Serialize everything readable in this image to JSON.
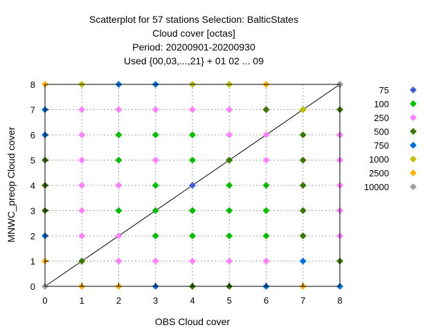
{
  "chart_data": {
    "type": "scatter",
    "title_lines": [
      "Scatterplot for   57 stations Selection: BalticStates",
      "Cloud cover [octas]",
      "Period: 20200901-20200930",
      "Used {00,03,...,21} + 01 02 ... 09"
    ],
    "xlabel": "OBS Cloud cover",
    "ylabel": "MNWC_preop Cloud cover",
    "xlim": [
      0,
      8
    ],
    "ylim": [
      0,
      8
    ],
    "xticks": [
      "0",
      "1",
      "2",
      "3",
      "4",
      "5",
      "6",
      "7",
      "8"
    ],
    "yticks": [
      "0",
      "1",
      "2",
      "3",
      "4",
      "5",
      "6",
      "7",
      "8"
    ],
    "grid": true,
    "diagonal": true,
    "legend_position": "right",
    "series": [
      {
        "name": "75",
        "color": "#4060d8",
        "points": [
          [
            3,
            5
          ],
          [
            4,
            4
          ],
          [
            4,
            3
          ],
          [
            8,
            8
          ]
        ]
      },
      {
        "name": "100",
        "color": "#00c000",
        "points": [
          [
            2,
            6
          ],
          [
            2,
            5
          ],
          [
            3,
            6
          ],
          [
            3,
            4
          ],
          [
            3,
            3
          ],
          [
            3,
            2
          ],
          [
            4,
            6
          ],
          [
            4,
            5
          ],
          [
            4,
            2
          ],
          [
            2,
            3
          ],
          [
            5,
            5
          ],
          [
            5,
            4
          ],
          [
            5,
            3
          ],
          [
            5,
            2
          ],
          [
            6,
            3
          ],
          [
            6,
            4
          ],
          [
            6,
            2
          ],
          [
            4,
            3
          ]
        ]
      },
      {
        "name": "250",
        "color": "#ff80ff",
        "points": [
          [
            1,
            7
          ],
          [
            1,
            6
          ],
          [
            1,
            5
          ],
          [
            1,
            4
          ],
          [
            1,
            3
          ],
          [
            1,
            2
          ],
          [
            1,
            1
          ],
          [
            2,
            7
          ],
          [
            2,
            4
          ],
          [
            2,
            2
          ],
          [
            2,
            1
          ],
          [
            3,
            7
          ],
          [
            3,
            1
          ],
          [
            4,
            7
          ],
          [
            4,
            1
          ],
          [
            5,
            7
          ],
          [
            5,
            6
          ],
          [
            5,
            1
          ],
          [
            6,
            7
          ],
          [
            6,
            6
          ],
          [
            6,
            5
          ],
          [
            6,
            1
          ],
          [
            7,
            5
          ],
          [
            7,
            4
          ],
          [
            7,
            3
          ],
          [
            7,
            2
          ],
          [
            8,
            6
          ],
          [
            8,
            5
          ],
          [
            8,
            4
          ],
          [
            8,
            3
          ],
          [
            8,
            2
          ],
          [
            0,
            8
          ],
          [
            3,
            5
          ]
        ]
      },
      {
        "name": "500",
        "color": "#3a7a00",
        "points": [
          [
            0,
            5
          ],
          [
            0,
            4
          ],
          [
            0,
            3
          ],
          [
            1,
            1
          ],
          [
            4,
            0
          ],
          [
            5,
            0
          ],
          [
            6,
            7
          ],
          [
            7,
            7
          ],
          [
            7,
            6
          ],
          [
            7,
            5
          ],
          [
            7,
            4
          ],
          [
            7,
            3
          ],
          [
            7,
            2
          ],
          [
            8,
            7
          ],
          [
            8,
            1
          ],
          [
            5,
            5
          ]
        ]
      },
      {
        "name": "750",
        "color": "#0070e0",
        "points": [
          [
            0,
            7
          ],
          [
            0,
            6
          ],
          [
            0,
            2
          ],
          [
            2,
            8
          ],
          [
            3,
            8
          ],
          [
            3,
            0
          ],
          [
            6,
            0
          ],
          [
            7,
            1
          ],
          [
            8,
            0
          ]
        ]
      },
      {
        "name": "1000",
        "color": "#c0c000",
        "points": [
          [
            1,
            8
          ],
          [
            4,
            8
          ],
          [
            5,
            8
          ],
          [
            7,
            7
          ]
        ]
      },
      {
        "name": "2500",
        "color": "#ffb000",
        "points": [
          [
            0,
            8
          ],
          [
            0,
            1
          ],
          [
            1,
            0
          ],
          [
            2,
            0
          ],
          [
            6,
            8
          ],
          [
            7,
            0
          ]
        ]
      },
      {
        "name": "10000",
        "color": "#a0a0a0",
        "points": [
          [
            0,
            0
          ],
          [
            8,
            8
          ]
        ]
      }
    ]
  }
}
